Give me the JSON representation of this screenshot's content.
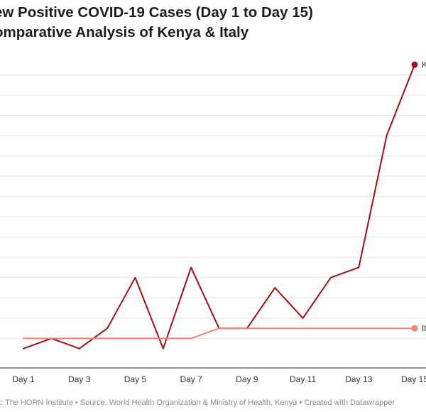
{
  "chart_data": {
    "type": "line",
    "title_line1": "ew Positive COVID-19 Cases (Day 1 to Day 15)",
    "title_line2": "omparative Analysis of Kenya & Italy",
    "x_ticks": [
      "Day 1",
      "Day 3",
      "Day 5",
      "Day 7",
      "Day 9",
      "Day 11",
      "Day 13",
      "Day 15"
    ],
    "x_tick_days": [
      1,
      3,
      5,
      7,
      9,
      11,
      13,
      15
    ],
    "xlim": [
      1,
      15
    ],
    "ylim": [
      0,
      29
    ],
    "grid": true,
    "grid_values": [
      2,
      4,
      6,
      8,
      10,
      12,
      14,
      16,
      18,
      20,
      22,
      24,
      26,
      28
    ],
    "series": [
      {
        "name": "K",
        "color": "#a50f15",
        "x": [
          1,
          2,
          3,
          4,
          5,
          6,
          7,
          8,
          9,
          10,
          11,
          12,
          13,
          14,
          15
        ],
        "values": [
          1,
          2,
          1,
          3,
          8,
          1,
          9,
          3,
          3,
          7,
          4,
          8,
          9,
          22,
          29
        ]
      },
      {
        "name": "It",
        "color": "#f2826f",
        "x": [
          1,
          2,
          3,
          4,
          5,
          6,
          7,
          8,
          9,
          10,
          11,
          12,
          13,
          14,
          15
        ],
        "values": [
          2,
          2,
          2,
          2,
          2,
          2,
          2,
          3,
          3,
          3,
          3,
          3,
          3,
          3,
          3
        ]
      }
    ],
    "footer": "t: The HORN Institute • Source: World Health Organization & Ministry of Health, Kenya • Created with Datawrapper"
  }
}
